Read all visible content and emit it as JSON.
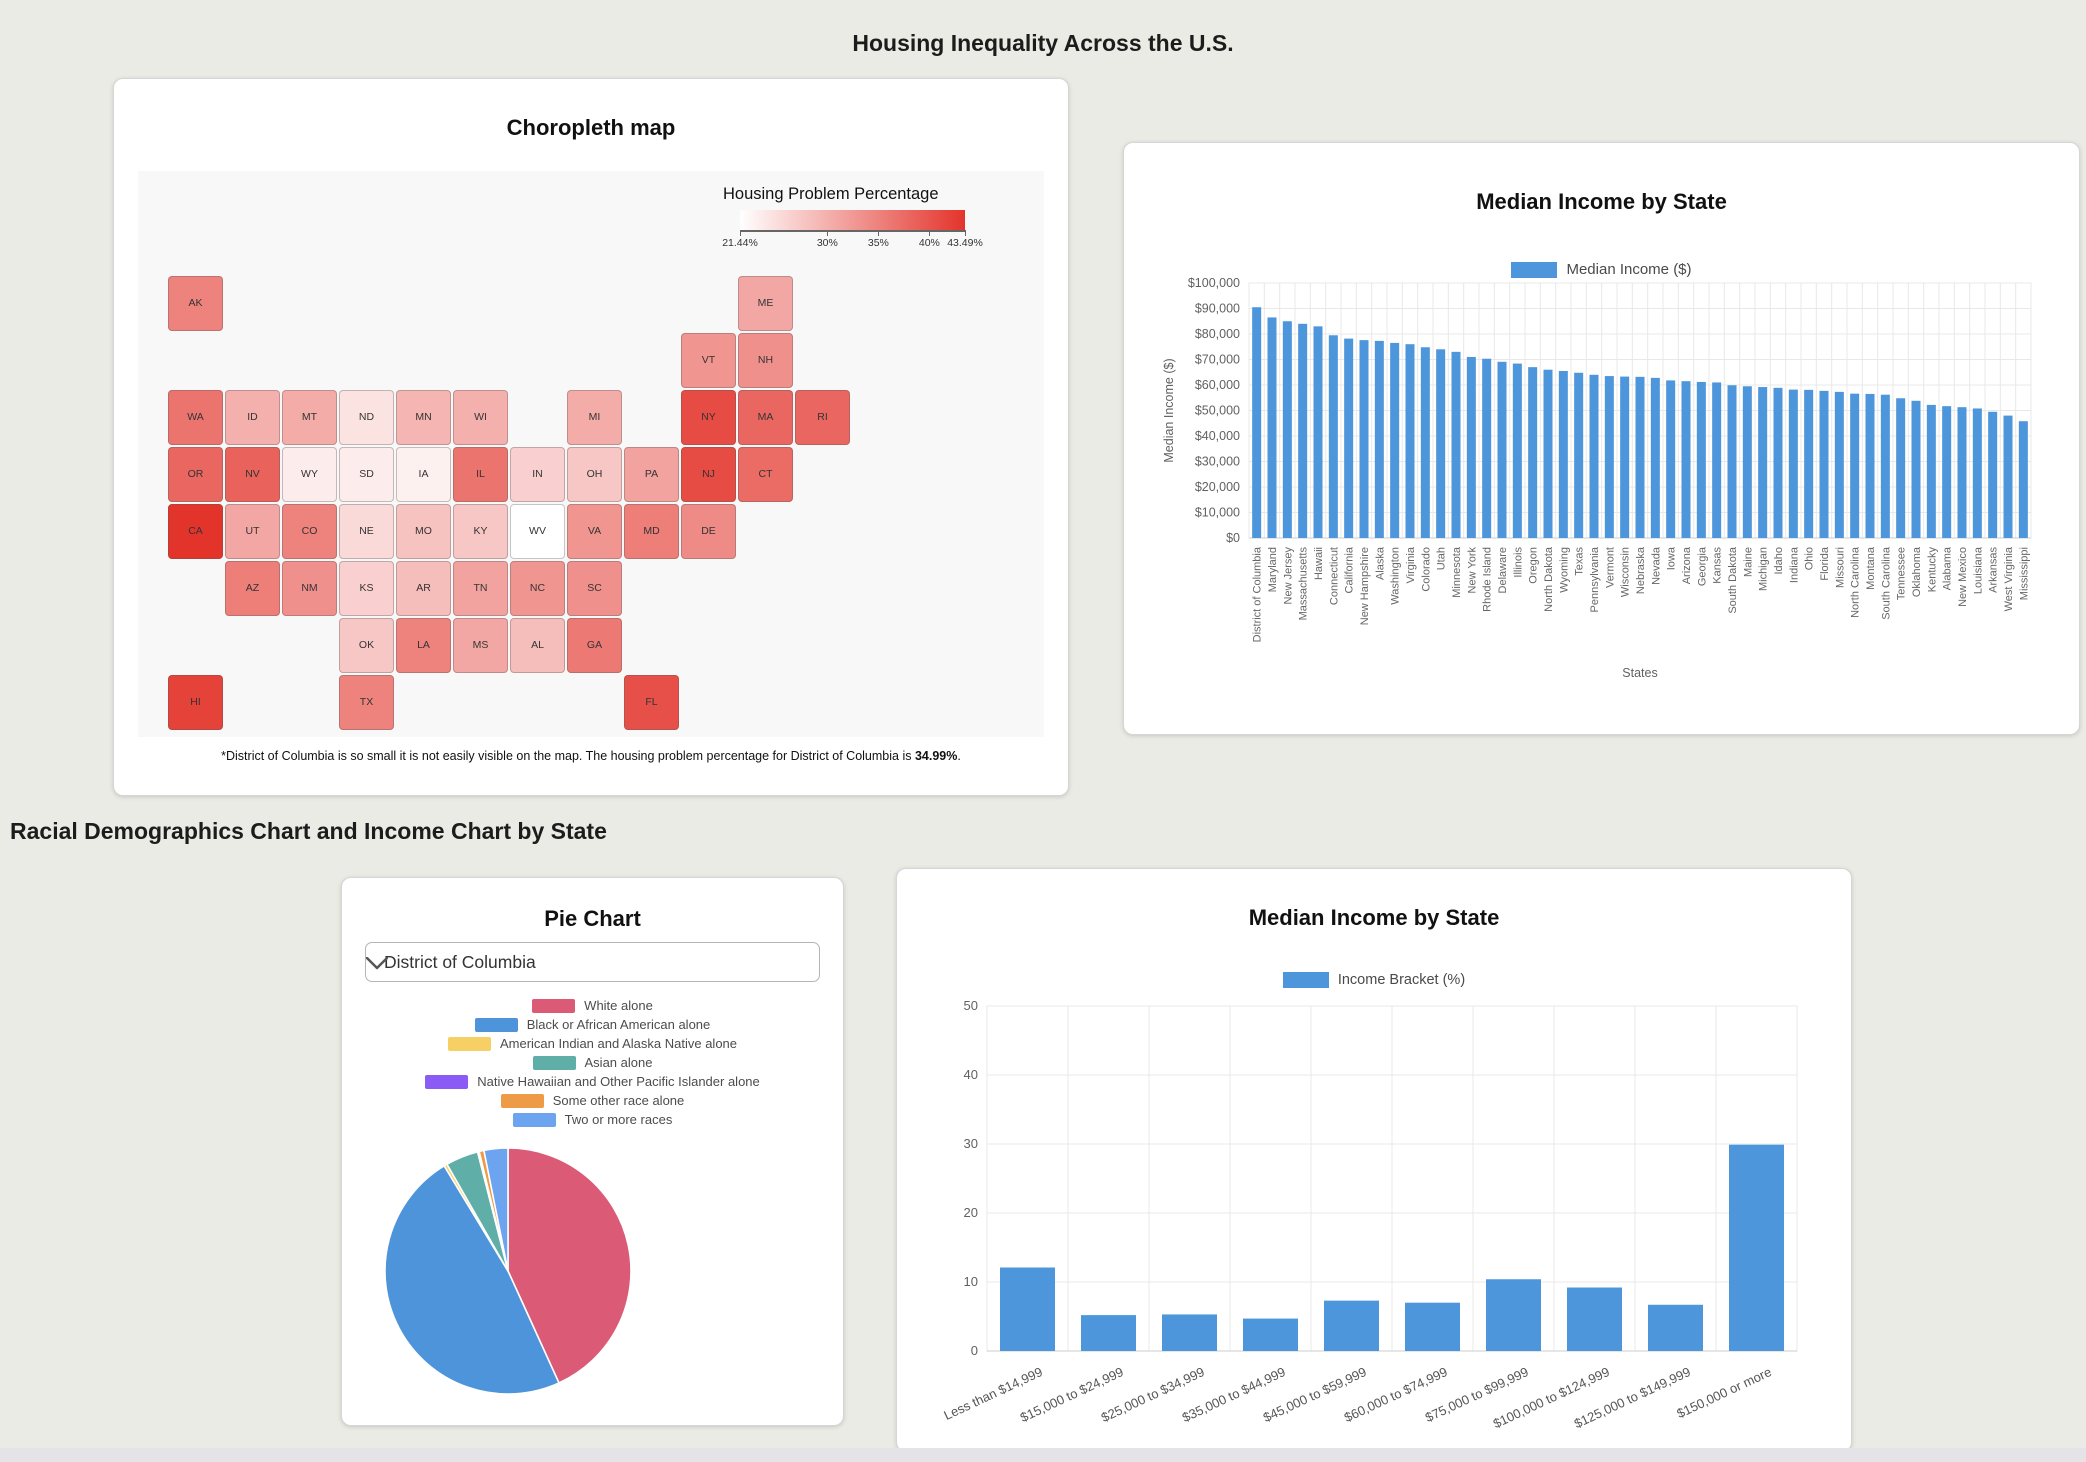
{
  "page": {
    "title": "Housing Inequality Across the U.S.",
    "section_heading": "Racial Demographics Chart and Income Chart by State"
  },
  "chart_data": [
    {
      "type": "heatmap",
      "subtype": "choropleth-map",
      "title": "Choropleth map",
      "legend_title": "Housing Problem Percentage",
      "unit": "%",
      "scale": {
        "min": 21.44,
        "max": 43.49,
        "ticks": [
          21.44,
          30,
          35,
          40,
          43.49
        ],
        "tick_labels": [
          "21.44%",
          "30%",
          "35%",
          "40%",
          "43.49%"
        ],
        "color_low": "#ffffff",
        "color_high": "#e3342c"
      },
      "footnote_prefix": "*District of Columbia is so small it is not easily visible on the map. The housing problem percentage for District of Columbia is ",
      "footnote_value": "34.99%",
      "footnote_suffix": ".",
      "states": [
        {
          "abbr": "AK",
          "value": 35,
          "col": 0,
          "row": 0
        },
        {
          "abbr": "ME",
          "value": 31,
          "col": 10,
          "row": 0
        },
        {
          "abbr": "VT",
          "value": 33,
          "col": 9,
          "row": 1
        },
        {
          "abbr": "NH",
          "value": 33.5,
          "col": 10,
          "row": 1
        },
        {
          "abbr": "WA",
          "value": 36.5,
          "col": 0,
          "row": 2
        },
        {
          "abbr": "ID",
          "value": 30,
          "col": 1,
          "row": 2
        },
        {
          "abbr": "MT",
          "value": 30.5,
          "col": 2,
          "row": 2
        },
        {
          "abbr": "ND",
          "value": 24.5,
          "col": 3,
          "row": 2
        },
        {
          "abbr": "MN",
          "value": 29.5,
          "col": 4,
          "row": 2
        },
        {
          "abbr": "WI",
          "value": 30,
          "col": 5,
          "row": 2
        },
        {
          "abbr": "MI",
          "value": 30.5,
          "col": 7,
          "row": 2
        },
        {
          "abbr": "NY",
          "value": 41,
          "col": 9,
          "row": 2
        },
        {
          "abbr": "MA",
          "value": 38,
          "col": 10,
          "row": 2
        },
        {
          "abbr": "RI",
          "value": 38,
          "col": 11,
          "row": 2
        },
        {
          "abbr": "OR",
          "value": 38,
          "col": 0,
          "row": 3
        },
        {
          "abbr": "NV",
          "value": 38.5,
          "col": 1,
          "row": 3
        },
        {
          "abbr": "WY",
          "value": 23.5,
          "col": 2,
          "row": 3
        },
        {
          "abbr": "SD",
          "value": 23.5,
          "col": 3,
          "row": 3
        },
        {
          "abbr": "IA",
          "value": 23,
          "col": 4,
          "row": 3
        },
        {
          "abbr": "IL",
          "value": 36.5,
          "col": 5,
          "row": 3
        },
        {
          "abbr": "IN",
          "value": 26.5,
          "col": 6,
          "row": 3
        },
        {
          "abbr": "OH",
          "value": 27.5,
          "col": 7,
          "row": 3
        },
        {
          "abbr": "PA",
          "value": 31.5,
          "col": 8,
          "row": 3
        },
        {
          "abbr": "NJ",
          "value": 41,
          "col": 9,
          "row": 3
        },
        {
          "abbr": "CT",
          "value": 37.5,
          "col": 10,
          "row": 3
        },
        {
          "abbr": "CA",
          "value": 43.49,
          "col": 0,
          "row": 4
        },
        {
          "abbr": "UT",
          "value": 31,
          "col": 1,
          "row": 4
        },
        {
          "abbr": "CO",
          "value": 35,
          "col": 2,
          "row": 4
        },
        {
          "abbr": "NE",
          "value": 25.5,
          "col": 3,
          "row": 4
        },
        {
          "abbr": "MO",
          "value": 28,
          "col": 4,
          "row": 4
        },
        {
          "abbr": "KY",
          "value": 27.5,
          "col": 5,
          "row": 4
        },
        {
          "abbr": "WV",
          "value": 21.44,
          "col": 6,
          "row": 4
        },
        {
          "abbr": "VA",
          "value": 33,
          "col": 7,
          "row": 4
        },
        {
          "abbr": "MD",
          "value": 35.5,
          "col": 8,
          "row": 4
        },
        {
          "abbr": "DE",
          "value": 34,
          "col": 9,
          "row": 4
        },
        {
          "abbr": "AZ",
          "value": 35.5,
          "col": 1,
          "row": 5
        },
        {
          "abbr": "NM",
          "value": 33.5,
          "col": 2,
          "row": 5
        },
        {
          "abbr": "KS",
          "value": 26.5,
          "col": 3,
          "row": 5
        },
        {
          "abbr": "AR",
          "value": 28.5,
          "col": 4,
          "row": 5
        },
        {
          "abbr": "TN",
          "value": 31.5,
          "col": 5,
          "row": 5
        },
        {
          "abbr": "NC",
          "value": 33,
          "col": 6,
          "row": 5
        },
        {
          "abbr": "SC",
          "value": 33.5,
          "col": 7,
          "row": 5
        },
        {
          "abbr": "OK",
          "value": 27.5,
          "col": 3,
          "row": 6
        },
        {
          "abbr": "LA",
          "value": 35,
          "col": 4,
          "row": 6
        },
        {
          "abbr": "MS",
          "value": 31,
          "col": 5,
          "row": 6
        },
        {
          "abbr": "AL",
          "value": 28.5,
          "col": 6,
          "row": 6
        },
        {
          "abbr": "GA",
          "value": 36,
          "col": 7,
          "row": 6
        },
        {
          "abbr": "HI",
          "value": 42,
          "col": 0,
          "row": 7
        },
        {
          "abbr": "TX",
          "value": 35,
          "col": 3,
          "row": 7
        },
        {
          "abbr": "FL",
          "value": 40.5,
          "col": 8,
          "row": 7
        }
      ]
    },
    {
      "type": "bar",
      "title": "Median Income by State",
      "legend": "Median Income ($)",
      "xlabel": "States",
      "ylabel": "Median Income ($)",
      "ylim": [
        0,
        100000
      ],
      "y_tick_labels": [
        "$0",
        "$10,000",
        "$20,000",
        "$30,000",
        "$40,000",
        "$50,000",
        "$60,000",
        "$70,000",
        "$80,000",
        "$90,000",
        "$100,000"
      ],
      "bar_color": "#4d96db",
      "grid": true,
      "legend_position": "top",
      "categories": [
        "District of Columbia",
        "Maryland",
        "New Jersey",
        "Massachusetts",
        "Hawaii",
        "Connecticut",
        "California",
        "New Hampshire",
        "Alaska",
        "Washington",
        "Virginia",
        "Colorado",
        "Utah",
        "Minnesota",
        "New York",
        "Rhode Island",
        "Delaware",
        "Illinois",
        "Oregon",
        "North Dakota",
        "Wyoming",
        "Texas",
        "Pennsylvania",
        "Vermont",
        "Wisconsin",
        "Nebraska",
        "Nevada",
        "Iowa",
        "Arizona",
        "Georgia",
        "Kansas",
        "South Dakota",
        "Maine",
        "Michigan",
        "Idaho",
        "Indiana",
        "Ohio",
        "Florida",
        "Missouri",
        "North Carolina",
        "Montana",
        "South Carolina",
        "Tennessee",
        "Oklahoma",
        "Kentucky",
        "Alabama",
        "New Mexico",
        "Louisiana",
        "Arkansas",
        "West Virginia",
        "Mississippi"
      ],
      "values": [
        90500,
        86500,
        85000,
        84000,
        83000,
        79500,
        78200,
        77600,
        77300,
        76500,
        76000,
        74800,
        74000,
        73000,
        71000,
        70300,
        69100,
        68400,
        67000,
        66000,
        65500,
        64800,
        64000,
        63500,
        63300,
        63200,
        62800,
        61800,
        61500,
        61200,
        61000,
        59900,
        59500,
        59200,
        58900,
        58200,
        58100,
        57700,
        57300,
        56600,
        56500,
        56200,
        54800,
        53800,
        52200,
        51700,
        51300,
        50800,
        49500,
        48000,
        45800
      ]
    },
    {
      "type": "pie",
      "title": "Pie Chart",
      "selected_state": "District of Columbia",
      "legend_position": "top",
      "slices": [
        {
          "label": "White alone",
          "value": 41.3,
          "color": "#db5a75"
        },
        {
          "label": "Black or African American alone",
          "value": 46.0,
          "color": "#4d94db"
        },
        {
          "label": "American Indian and Alaska Native alone",
          "value": 0.4,
          "color": "#f6cf65"
        },
        {
          "label": "Asian alone",
          "value": 4.1,
          "color": "#5faea8"
        },
        {
          "label": "Native Hawaiian and Other Pacific Islander alone",
          "value": 0.2,
          "color": "#8a5cf5"
        },
        {
          "label": "Some other race alone",
          "value": 0.6,
          "color": "#ee9b47"
        },
        {
          "label": "Two or more races",
          "value": 3.0,
          "color": "#6ca4f0"
        }
      ]
    },
    {
      "type": "bar",
      "title": "Median Income by State",
      "legend": "Income Bracket (%)",
      "xlabel": "",
      "ylabel": "",
      "ylim": [
        0,
        50
      ],
      "y_tick_labels": [
        "0",
        "10",
        "20",
        "30",
        "40",
        "50"
      ],
      "bar_color": "#4d96db",
      "grid": true,
      "legend_position": "top",
      "categories": [
        "Less than $14,999",
        "$15,000 to $24,999",
        "$25,000 to $34,999",
        "$35,000 to $44,999",
        "$45,000 to $59,999",
        "$60,000 to $74,999",
        "$75,000 to $99,999",
        "$100,000 to $124,999",
        "$125,000 to $149,999",
        "$150,000 or more"
      ],
      "values": [
        12.1,
        5.2,
        5.3,
        4.7,
        7.3,
        7.0,
        10.4,
        9.2,
        6.7,
        29.9
      ]
    }
  ]
}
